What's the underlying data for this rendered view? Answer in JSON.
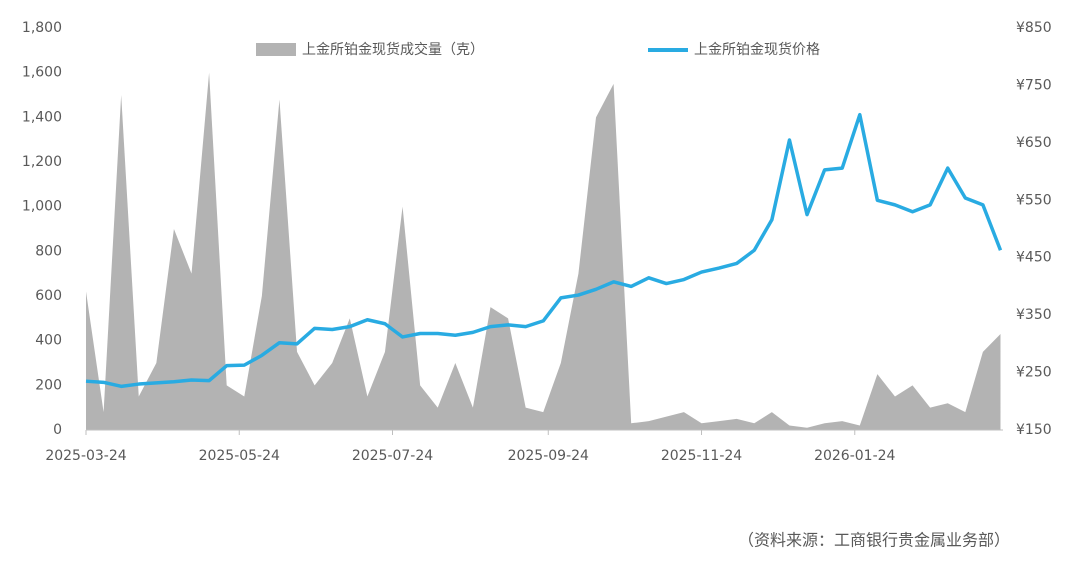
{
  "chart_data": {
    "type": "area-line",
    "x": [
      "2025-03-24",
      "2025-03-31",
      "2025-04-07",
      "2025-04-14",
      "2025-04-21",
      "2025-04-28",
      "2025-05-05",
      "2025-05-12",
      "2025-05-19",
      "2025-05-26",
      "2025-06-02",
      "2025-06-09",
      "2025-06-16",
      "2025-06-23",
      "2025-06-30",
      "2025-07-07",
      "2025-07-14",
      "2025-07-21",
      "2025-07-28",
      "2025-08-04",
      "2025-08-11",
      "2025-08-18",
      "2025-08-25",
      "2025-09-01",
      "2025-09-08",
      "2025-09-15",
      "2025-09-22",
      "2025-09-29",
      "2025-10-06",
      "2025-10-13",
      "2025-10-20",
      "2025-10-27",
      "2025-11-03",
      "2025-11-10",
      "2025-11-17",
      "2025-11-24",
      "2025-12-01",
      "2025-12-08",
      "2025-12-15",
      "2025-12-22",
      "2025-12-29",
      "2026-01-05",
      "2026-01-12",
      "2026-01-19",
      "2026-01-26",
      "2026-02-02",
      "2026-02-09",
      "2026-02-16",
      "2026-02-23",
      "2026-03-02",
      "2026-03-09",
      "2026-03-16",
      "2026-03-23"
    ],
    "series": [
      {
        "name": "上金所铂金现货成交量（克）",
        "color": "#b3b3b3",
        "values": [
          620,
          80,
          1500,
          150,
          300,
          900,
          700,
          1600,
          200,
          150,
          600,
          1480,
          350,
          200,
          300,
          500,
          150,
          350,
          1000,
          200,
          100,
          300,
          100,
          550,
          500,
          100,
          80,
          300,
          700,
          1400,
          1550,
          30,
          40,
          60,
          80,
          30,
          40,
          50,
          30,
          80,
          20,
          10,
          30,
          40,
          20,
          250,
          150,
          200,
          100,
          120,
          80,
          350,
          430
        ]
      },
      {
        "name": "上金所铂金现货价格",
        "color": "#29abe2",
        "axis": "y2",
        "values": [
          235,
          233,
          226,
          230,
          232,
          234,
          237,
          236,
          262,
          263,
          280,
          302,
          300,
          327,
          325,
          330,
          342,
          335,
          312,
          318,
          318,
          315,
          320,
          330,
          333,
          330,
          340,
          380,
          385,
          395,
          408,
          400,
          415,
          405,
          412,
          425,
          432,
          440,
          463,
          516,
          655,
          525,
          603,
          606,
          699,
          550,
          542,
          530,
          542,
          606,
          554,
          542,
          463
        ]
      }
    ],
    "xlim": [
      "2025-03-24",
      "2026-03-24"
    ],
    "xticks": [
      "2025-03-24",
      "2025-05-24",
      "2025-07-24",
      "2025-09-24",
      "2025-11-24",
      "2026-01-24"
    ],
    "ylim": [
      0,
      1800
    ],
    "yticks": [
      0,
      200,
      400,
      600,
      800,
      {
        "value": 1000,
        "label": "1,000"
      },
      {
        "value": 1200,
        "label": "1,200"
      },
      {
        "value": 1400,
        "label": "1,400"
      },
      {
        "value": 1600,
        "label": "1,600"
      },
      {
        "value": 1800,
        "label": "1,800"
      }
    ],
    "y2lim": [
      150,
      850
    ],
    "y2ticks": [
      {
        "value": 150,
        "label": "¥150"
      },
      {
        "value": 250,
        "label": "¥250"
      },
      {
        "value": 350,
        "label": "¥350"
      },
      {
        "value": 450,
        "label": "¥450"
      },
      {
        "value": 550,
        "label": "¥550"
      },
      {
        "value": 650,
        "label": "¥650"
      },
      {
        "value": 750,
        "label": "¥750"
      },
      {
        "value": 850,
        "label": "¥850"
      }
    ],
    "source": "（资料来源：工商银行贵金属业务部）"
  }
}
